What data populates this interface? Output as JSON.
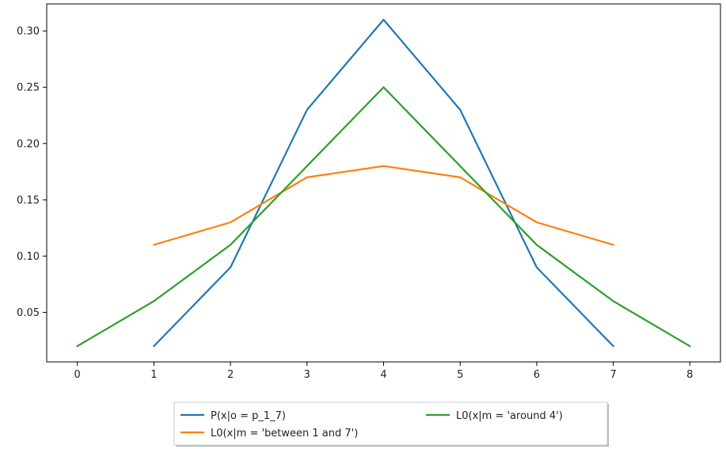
{
  "chart_data": {
    "type": "line",
    "title": "",
    "xlabel": "",
    "ylabel": "",
    "xlim": [
      -0.4,
      8.4
    ],
    "ylim": [
      0.006,
      0.324
    ],
    "x_ticks": [
      0,
      1,
      2,
      3,
      4,
      5,
      6,
      7,
      8
    ],
    "x_tick_labels": [
      "0",
      "1",
      "2",
      "3",
      "4",
      "5",
      "6",
      "7",
      "8"
    ],
    "y_ticks": [
      0.05,
      0.1,
      0.15,
      0.2,
      0.25,
      0.3
    ],
    "y_tick_labels": [
      "0.05",
      "0.10",
      "0.15",
      "0.20",
      "0.25",
      "0.30"
    ],
    "grid": false,
    "legend_position": "below the plot, centered",
    "series": [
      {
        "name": "P(x|o = p_1_7)",
        "color": "#1f77b4",
        "x": [
          1,
          2,
          3,
          4,
          5,
          6,
          7
        ],
        "y": [
          0.02,
          0.09,
          0.23,
          0.31,
          0.23,
          0.09,
          0.02
        ]
      },
      {
        "name": "L0(x|m = 'between 1 and 7')",
        "color": "#ff7f0e",
        "x": [
          1,
          2,
          3,
          4,
          5,
          6,
          7
        ],
        "y": [
          0.11,
          0.13,
          0.17,
          0.18,
          0.17,
          0.13,
          0.11
        ]
      },
      {
        "name": "L0(x|m = 'around 4')",
        "color": "#2ca02c",
        "x": [
          0,
          1,
          2,
          3,
          4,
          5,
          6,
          7,
          8
        ],
        "y": [
          0.02,
          0.06,
          0.11,
          0.18,
          0.25,
          0.18,
          0.11,
          0.06,
          0.02
        ]
      }
    ]
  }
}
